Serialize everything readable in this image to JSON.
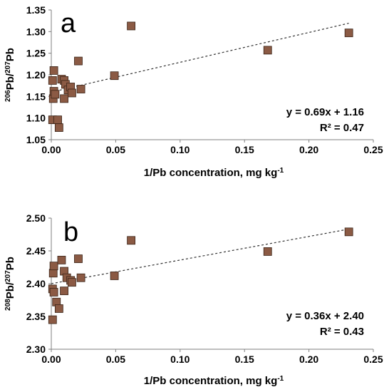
{
  "chart_data": [
    {
      "type": "scatter",
      "panel_label": "a",
      "ylabel": {
        "sup1": "206",
        "main1": "Pb/",
        "sup2": "207",
        "main2": "Pb"
      },
      "xlabel": {
        "main": "1/Pb concentration, mg kg",
        "sup": "-1"
      },
      "xlim": [
        0,
        0.25
      ],
      "ylim": [
        1.05,
        1.35
      ],
      "x_ticks": [
        "0.00",
        "0.05",
        "0.10",
        "0.15",
        "0.20",
        "0.25"
      ],
      "x_tick_values": [
        0,
        0.05,
        0.1,
        0.15,
        0.2,
        0.25
      ],
      "y_ticks": [
        "1.05",
        "1.10",
        "1.15",
        "1.20",
        "1.25",
        "1.30",
        "1.35"
      ],
      "y_tick_values": [
        1.05,
        1.1,
        1.15,
        1.2,
        1.25,
        1.3,
        1.35
      ],
      "grid": false,
      "marker_color": "#8b5a44",
      "points": [
        {
          "x": 0.001,
          "y": 1.187
        },
        {
          "x": 0.001,
          "y": 1.096
        },
        {
          "x": 0.0015,
          "y": 1.145
        },
        {
          "x": 0.002,
          "y": 1.162
        },
        {
          "x": 0.002,
          "y": 1.21
        },
        {
          "x": 0.003,
          "y": 1.155
        },
        {
          "x": 0.005,
          "y": 1.096
        },
        {
          "x": 0.006,
          "y": 1.078
        },
        {
          "x": 0.008,
          "y": 1.19
        },
        {
          "x": 0.01,
          "y": 1.187
        },
        {
          "x": 0.01,
          "y": 1.145
        },
        {
          "x": 0.011,
          "y": 1.178
        },
        {
          "x": 0.013,
          "y": 1.165
        },
        {
          "x": 0.015,
          "y": 1.172
        },
        {
          "x": 0.016,
          "y": 1.158
        },
        {
          "x": 0.021,
          "y": 1.232
        },
        {
          "x": 0.023,
          "y": 1.167
        },
        {
          "x": 0.049,
          "y": 1.198
        },
        {
          "x": 0.062,
          "y": 1.313
        },
        {
          "x": 0.168,
          "y": 1.257
        },
        {
          "x": 0.231,
          "y": 1.297
        }
      ],
      "trendline": {
        "slope": 0.69,
        "intercept": 1.16,
        "x_range": [
          0,
          0.231
        ]
      },
      "equation": "y = 0.69x + 1.16",
      "r2_label": "R² = 0.47"
    },
    {
      "type": "scatter",
      "panel_label": "b",
      "ylabel": {
        "sup1": "208",
        "main1": "Pb/",
        "sup2": "207",
        "main2": "Pb"
      },
      "xlabel": {
        "main": "1/Pb concentration, mg kg",
        "sup": "-1"
      },
      "xlim": [
        0,
        0.25
      ],
      "ylim": [
        2.3,
        2.5
      ],
      "x_ticks": [
        "0.00",
        "0.05",
        "0.10",
        "0.15",
        "0.20",
        "0.25"
      ],
      "x_tick_values": [
        0,
        0.05,
        0.1,
        0.15,
        0.2,
        0.25
      ],
      "y_ticks": [
        "2.30",
        "2.35",
        "2.40",
        "2.45",
        "2.50"
      ],
      "y_tick_values": [
        2.3,
        2.35,
        2.4,
        2.45,
        2.5
      ],
      "grid": false,
      "marker_color": "#8b5a44",
      "points": [
        {
          "x": 0.001,
          "y": 2.392
        },
        {
          "x": 0.001,
          "y": 2.345
        },
        {
          "x": 0.0015,
          "y": 2.416
        },
        {
          "x": 0.002,
          "y": 2.427
        },
        {
          "x": 0.002,
          "y": 2.387
        },
        {
          "x": 0.004,
          "y": 2.372
        },
        {
          "x": 0.006,
          "y": 2.362
        },
        {
          "x": 0.008,
          "y": 2.436
        },
        {
          "x": 0.01,
          "y": 2.419
        },
        {
          "x": 0.01,
          "y": 2.389
        },
        {
          "x": 0.012,
          "y": 2.409
        },
        {
          "x": 0.015,
          "y": 2.405
        },
        {
          "x": 0.016,
          "y": 2.402
        },
        {
          "x": 0.021,
          "y": 2.438
        },
        {
          "x": 0.023,
          "y": 2.409
        },
        {
          "x": 0.049,
          "y": 2.412
        },
        {
          "x": 0.062,
          "y": 2.466
        },
        {
          "x": 0.168,
          "y": 2.449
        },
        {
          "x": 0.231,
          "y": 2.479
        }
      ],
      "trendline": {
        "slope": 0.36,
        "intercept": 2.4,
        "x_range": [
          0,
          0.231
        ]
      },
      "equation": "y = 0.36x + 2.40",
      "r2_label": "R² = 0.43"
    }
  ]
}
